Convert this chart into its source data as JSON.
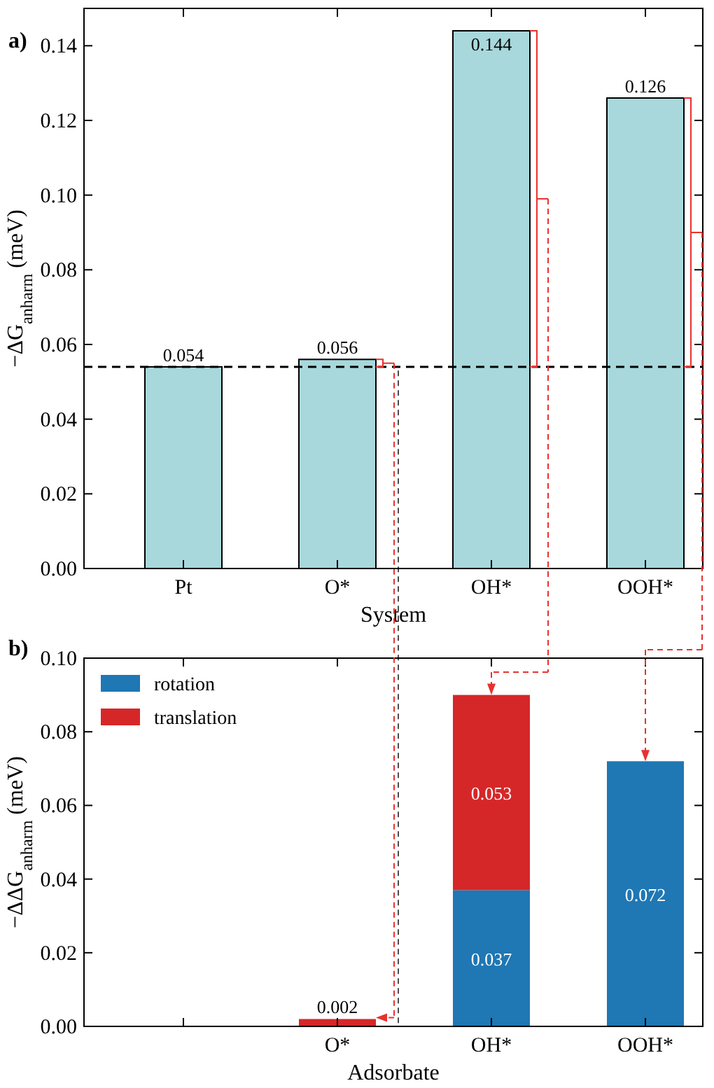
{
  "chart_data": [
    {
      "type": "bar",
      "title": "a)",
      "xlabel": "System",
      "ylabel": "−ΔG$_{anharm}$ (meV)",
      "categories": [
        "Pt",
        "O*",
        "OH*",
        "OOH*"
      ],
      "values": [
        0.054,
        0.056,
        0.144,
        0.126
      ],
      "color": "#a8d8dc",
      "ylim": [
        0,
        0.15
      ],
      "yticks": [
        {
          "value": 0,
          "label": "0.00"
        },
        {
          "value": 0.02,
          "label": "0.02"
        },
        {
          "value": 0.04,
          "label": "0.04"
        },
        {
          "value": 0.06,
          "label": "0.06"
        },
        {
          "value": 0.08,
          "label": "0.08"
        },
        {
          "value": 0.1,
          "label": "0.10"
        },
        {
          "value": 0.12,
          "label": "0.12"
        },
        {
          "value": 0.14,
          "label": "0.14"
        }
      ],
      "data_labels": true,
      "grid": false,
      "ref_lines": [
        {
          "axis": "y",
          "value": 0.054,
          "color": "#000000",
          "line_style": "dashed"
        }
      ]
    },
    {
      "type": "bar",
      "title": "b)",
      "xlabel": "Adsorbate",
      "ylabel": "−ΔΔG$_{anharm}$ (meV)",
      "categories": [
        null,
        "O*",
        "OH*",
        "OOH*"
      ],
      "stacked": true,
      "series": [
        {
          "name": "rotation",
          "color": "#1f77b4",
          "values": [
            null,
            null,
            0.037,
            0.072
          ]
        },
        {
          "name": "translation",
          "color": "#d62728",
          "values": [
            null,
            0.002,
            0.053,
            null
          ]
        }
      ],
      "ylim": [
        0,
        0.1
      ],
      "yticks": [
        {
          "value": 0,
          "label": "0.00"
        },
        {
          "value": 0.02,
          "label": "0.02"
        },
        {
          "value": 0.04,
          "label": "0.04"
        },
        {
          "value": 0.06,
          "label": "0.06"
        },
        {
          "value": 0.08,
          "label": "0.08"
        },
        {
          "value": 0.1,
          "label": "0.10"
        }
      ],
      "data_labels": true,
      "grid": false,
      "legend": "top left"
    }
  ]
}
